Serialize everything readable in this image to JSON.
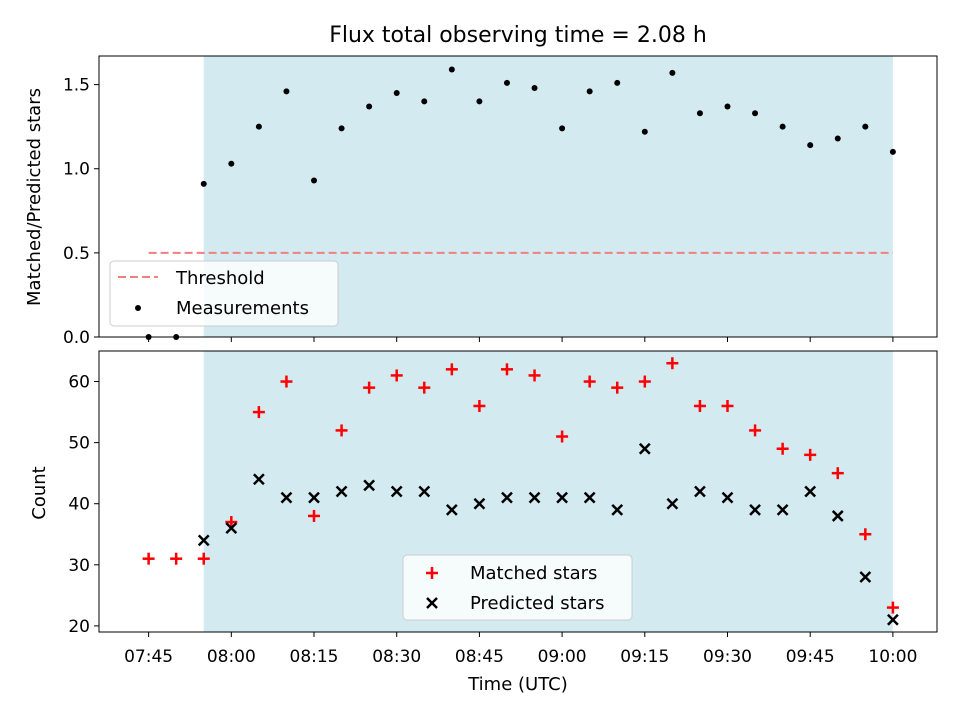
{
  "chart_data": [
    {
      "type": "scatter",
      "title": "Flux total observing time = 2.08 h",
      "xlabel": "",
      "ylabel": "Matched/Predicted stars",
      "xlim": [
        "07:36",
        "10:08"
      ],
      "ylim": [
        0,
        1.67
      ],
      "yticks": [
        "0.0",
        "0.5",
        "1.0",
        "1.5"
      ],
      "shaded_interval": [
        "07:55",
        "10:00"
      ],
      "shade_color": "#d3eaf0",
      "threshold": {
        "name": "Threshold",
        "value": 0.5,
        "x_range": [
          "07:45",
          "10:00"
        ],
        "color": "#f08080"
      },
      "series": [
        {
          "name": "Measurements",
          "color": "#000000",
          "x": [
            "07:45",
            "07:50",
            "07:55",
            "08:00",
            "08:05",
            "08:10",
            "08:15",
            "08:20",
            "08:25",
            "08:30",
            "08:35",
            "08:40",
            "08:45",
            "08:50",
            "08:55",
            "09:00",
            "09:05",
            "09:10",
            "09:15",
            "09:20",
            "09:25",
            "09:30",
            "09:35",
            "09:40",
            "09:45",
            "09:50",
            "09:55",
            "10:00"
          ],
          "y": [
            0.0,
            0.0,
            0.91,
            1.03,
            1.25,
            1.46,
            0.93,
            1.24,
            1.37,
            1.45,
            1.4,
            1.59,
            1.4,
            1.51,
            1.48,
            1.24,
            1.46,
            1.51,
            1.22,
            1.57,
            1.33,
            1.37,
            1.33,
            1.25,
            1.14,
            1.18,
            1.25,
            1.1
          ]
        }
      ],
      "legend": {
        "placement": "lower-left",
        "entries": [
          "Threshold",
          "Measurements"
        ]
      }
    },
    {
      "type": "scatter",
      "title": "",
      "xlabel": "Time (UTC)",
      "ylabel": "Count",
      "xlim": [
        "07:36",
        "10:08"
      ],
      "ylim": [
        19,
        65
      ],
      "yticks": [
        "20",
        "30",
        "40",
        "50",
        "60"
      ],
      "xticks": [
        "07:45",
        "08:00",
        "08:15",
        "08:30",
        "08:45",
        "09:00",
        "09:15",
        "09:30",
        "09:45",
        "10:00"
      ],
      "shaded_interval": [
        "07:55",
        "10:00"
      ],
      "shade_color": "#d3eaf0",
      "series": [
        {
          "name": "Matched stars",
          "marker": "plus",
          "color": "#ff0000",
          "x": [
            "07:45",
            "07:50",
            "07:55",
            "08:00",
            "08:05",
            "08:10",
            "08:15",
            "08:20",
            "08:25",
            "08:30",
            "08:35",
            "08:40",
            "08:45",
            "08:50",
            "08:55",
            "09:00",
            "09:05",
            "09:10",
            "09:15",
            "09:20",
            "09:25",
            "09:30",
            "09:35",
            "09:40",
            "09:45",
            "09:50",
            "09:55",
            "10:00"
          ],
          "y": [
            31,
            31,
            31,
            37,
            55,
            60,
            38,
            52,
            59,
            61,
            59,
            62,
            56,
            62,
            61,
            51,
            60,
            59,
            60,
            63,
            56,
            56,
            52,
            49,
            48,
            45,
            35,
            23
          ]
        },
        {
          "name": "Predicted stars",
          "marker": "x",
          "color": "#000000",
          "x": [
            "07:55",
            "08:00",
            "08:05",
            "08:10",
            "08:15",
            "08:20",
            "08:25",
            "08:30",
            "08:35",
            "08:40",
            "08:45",
            "08:50",
            "08:55",
            "09:00",
            "09:05",
            "09:10",
            "09:15",
            "09:20",
            "09:25",
            "09:30",
            "09:35",
            "09:40",
            "09:45",
            "09:50",
            "09:55",
            "10:00"
          ],
          "y": [
            34,
            36,
            44,
            41,
            41,
            42,
            43,
            42,
            42,
            39,
            40,
            41,
            41,
            41,
            41,
            39,
            49,
            40,
            42,
            41,
            39,
            39,
            42,
            38,
            28,
            21
          ]
        }
      ],
      "legend": {
        "placement": "lower-center",
        "entries": [
          "Matched stars",
          "Predicted stars"
        ]
      }
    }
  ]
}
